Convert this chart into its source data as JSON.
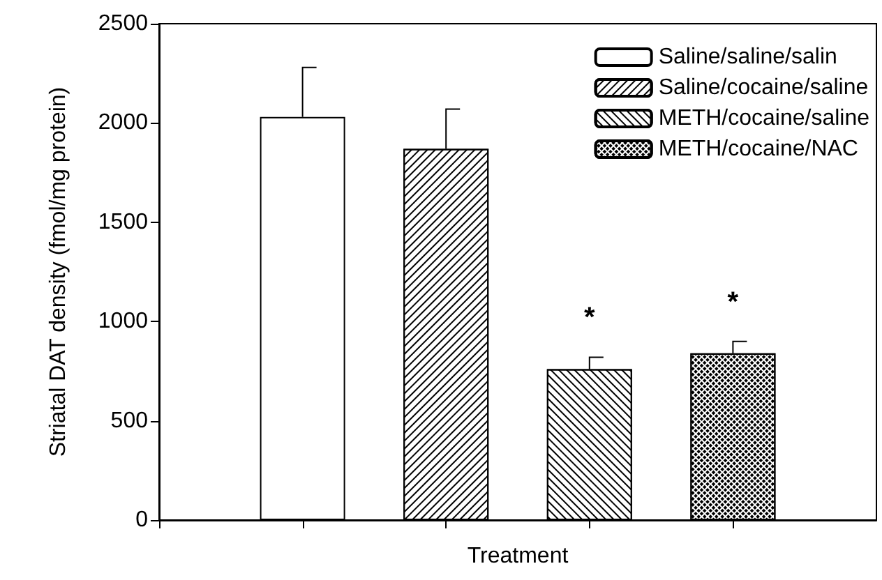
{
  "chart_data": {
    "type": "bar",
    "xlabel": "Treatment",
    "ylabel": "Striatal DAT density (fmol/mg protein)",
    "categories": [
      null,
      null,
      null,
      null
    ],
    "series": [
      {
        "name": "Saline/saline/salin",
        "color": "#ffffff",
        "values": [
          2030,
          null,
          null,
          null
        ],
        "errors": [
          [
            2030,
            2280
          ],
          null,
          null,
          null
        ]
      },
      {
        "name": "Saline/cocaine/saline",
        "color": "#ffffff",
        "values": [
          null,
          1870,
          null,
          null
        ],
        "errors": [
          null,
          [
            1870,
            2070
          ],
          null,
          null
        ]
      },
      {
        "name": "METH/cocaine/saline",
        "color": "#ffffff",
        "values": [
          null,
          null,
          760,
          null
        ],
        "errors": [
          null,
          null,
          [
            760,
            820
          ],
          null
        ]
      },
      {
        "name": "METH/cocaine/NAC",
        "color": "#ffffff",
        "values": [
          null,
          null,
          null,
          840
        ],
        "errors": [
          null,
          null,
          null,
          [
            840,
            900
          ]
        ]
      }
    ],
    "annotations": [
      "*",
      "*"
    ],
    "ylim": [
      0,
      2500
    ],
    "yticks": [
      0,
      500,
      1000,
      1500,
      2000,
      2500
    ],
    "grid": false,
    "legend": "top right"
  }
}
